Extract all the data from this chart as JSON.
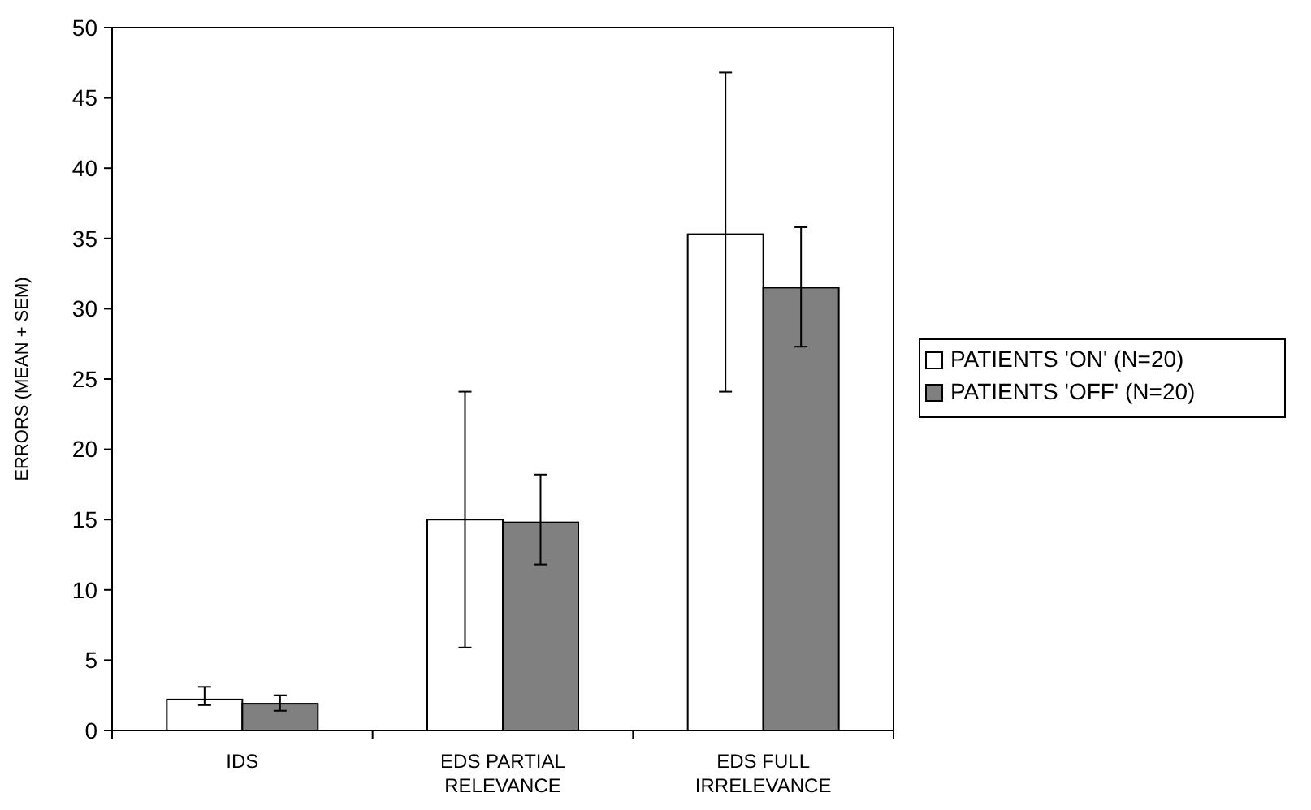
{
  "chart_data": {
    "type": "bar",
    "ylabel": "ERRORS (MEAN + SEM)",
    "categories": [
      "IDS",
      "EDS PARTIAL\nRELEVANCE",
      "EDS FULL\nIRRELEVANCE"
    ],
    "series": [
      {
        "name": "PATIENTS 'ON' (N=20)",
        "color": "#ffffff",
        "values": [
          2.2,
          15.0,
          35.3
        ],
        "errors": [
          [
            1.8,
            3.1
          ],
          [
            5.9,
            24.1
          ],
          [
            24.1,
            46.8
          ]
        ]
      },
      {
        "name": "PATIENTS 'OFF' (N=20)",
        "color": "#808080",
        "values": [
          1.9,
          14.8,
          31.5
        ],
        "errors": [
          [
            1.4,
            2.5
          ],
          [
            11.8,
            18.2
          ],
          [
            27.3,
            35.8
          ]
        ]
      }
    ],
    "ylim": [
      0,
      50
    ],
    "yticks": [
      0,
      5,
      10,
      15,
      20,
      25,
      30,
      35,
      40,
      45,
      50
    ],
    "grid": false,
    "legend": "right"
  }
}
